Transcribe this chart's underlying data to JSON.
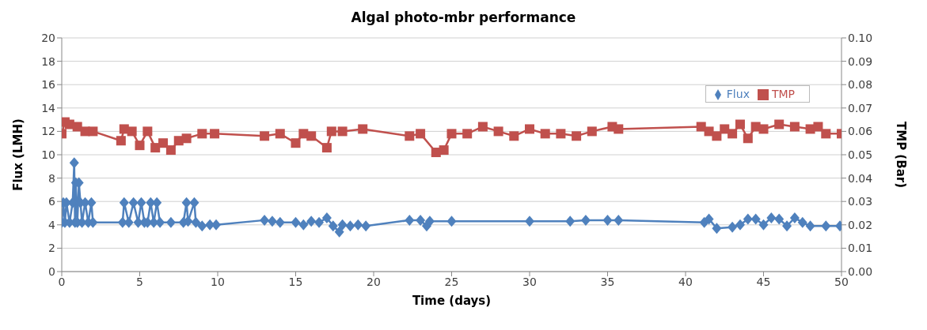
{
  "chart_data": {
    "type": "line",
    "title": "Algal photo-mbr performance",
    "xlabel": "Time (days)",
    "ylabel": "Flux (LMH)",
    "y2label": "TMP (Bar)",
    "xlim": [
      0,
      50
    ],
    "xticks": [
      0,
      5,
      10,
      15,
      20,
      25,
      30,
      35,
      40,
      45,
      50
    ],
    "ylim": [
      0,
      20
    ],
    "yticks": [
      0,
      2,
      4,
      6,
      8,
      10,
      12,
      14,
      16,
      18,
      20
    ],
    "y2lim": [
      0,
      0.1
    ],
    "y2ticks": [
      {
        "value": 0,
        "label": "0.00"
      },
      {
        "value": 0.01,
        "label": "0.01"
      },
      {
        "value": 0.02,
        "label": "0.02"
      },
      {
        "value": 0.03,
        "label": "0.03"
      },
      {
        "value": 0.04,
        "label": "0.04"
      },
      {
        "value": 0.05,
        "label": "0.05"
      },
      {
        "value": 0.06,
        "label": "0.06"
      },
      {
        "value": 0.07,
        "label": "0.07"
      },
      {
        "value": 0.08,
        "label": "0.08"
      },
      {
        "value": 0.09,
        "label": "0.09"
      },
      {
        "value": 0.1,
        "label": "0.10"
      }
    ],
    "grid": "y",
    "legend": "top right",
    "line_style": "solid",
    "series": [
      {
        "name": "Flux",
        "color": "#4f81bd",
        "marker": "diamond",
        "x": [
          0,
          0.1,
          0.2,
          0.3,
          0.5,
          0.7,
          0.8,
          0.85,
          0.9,
          1.0,
          1.1,
          1.2,
          1.3,
          1.5,
          1.7,
          1.9,
          2.0,
          3.9,
          4.0,
          4.3,
          4.6,
          4.9,
          5.1,
          5.3,
          5.5,
          5.7,
          5.9,
          6.1,
          6.3,
          7,
          7.8,
          8.0,
          8.1,
          8.5,
          8.6,
          9,
          9.5,
          9.9,
          13,
          13.5,
          14,
          15,
          15.5,
          16,
          16.5,
          17,
          17.4,
          17.8,
          18,
          18.5,
          19,
          19.5,
          22.3,
          23,
          23.4,
          23.6,
          25,
          30,
          32.6,
          33.6,
          35,
          35.7,
          41.2,
          41.5,
          42,
          43,
          43.5,
          44,
          44.5,
          45,
          45.5,
          46,
          46.5,
          47,
          47.5,
          48,
          49,
          49.9
        ],
        "values": [
          4.2,
          5.9,
          4.2,
          5.9,
          4.2,
          5.9,
          9.3,
          4.2,
          7.6,
          4.2,
          7.6,
          5.9,
          4.2,
          5.9,
          4.2,
          5.9,
          4.2,
          4.2,
          5.9,
          4.2,
          5.9,
          4.2,
          5.9,
          4.2,
          4.2,
          5.9,
          4.2,
          5.9,
          4.2,
          4.2,
          4.2,
          5.9,
          4.3,
          5.9,
          4.2,
          3.9,
          4.0,
          4.0,
          4.4,
          4.3,
          4.2,
          4.2,
          4.0,
          4.3,
          4.2,
          4.6,
          3.9,
          3.4,
          4.0,
          3.9,
          4.0,
          3.9,
          4.4,
          4.4,
          3.9,
          4.3,
          4.3,
          4.3,
          4.3,
          4.4,
          4.4,
          4.4,
          4.2,
          4.5,
          3.7,
          3.8,
          4.0,
          4.5,
          4.5,
          4.0,
          4.6,
          4.5,
          3.9,
          4.6,
          4.2,
          3.9,
          3.9,
          3.9
        ]
      },
      {
        "name": "TMP",
        "color": "#c0504d",
        "marker": "square",
        "axis": "y2",
        "x": [
          0,
          0.2,
          0.5,
          1,
          1.5,
          2,
          3.8,
          4,
          4.5,
          5,
          5.5,
          6,
          6.5,
          7,
          7.5,
          8,
          9,
          9.8,
          13,
          14,
          15,
          15.5,
          16,
          17,
          17.3,
          18,
          19.3,
          22.3,
          23,
          24,
          24.5,
          25,
          26,
          27,
          28,
          29,
          30,
          31,
          32,
          33,
          34,
          35.3,
          35.7,
          41,
          41.5,
          42,
          42.5,
          43,
          43.5,
          44,
          44.5,
          45,
          46,
          47,
          48,
          48.5,
          49,
          50
        ],
        "values": [
          0.059,
          0.064,
          0.063,
          0.062,
          0.06,
          0.06,
          0.056,
          0.061,
          0.06,
          0.054,
          0.06,
          0.053,
          0.055,
          0.052,
          0.056,
          0.057,
          0.059,
          0.059,
          0.058,
          0.059,
          0.055,
          0.059,
          0.058,
          0.053,
          0.06,
          0.06,
          0.061,
          0.058,
          0.059,
          0.051,
          0.052,
          0.059,
          0.059,
          0.062,
          0.06,
          0.058,
          0.061,
          0.059,
          0.059,
          0.058,
          0.06,
          0.062,
          0.061,
          0.062,
          0.06,
          0.058,
          0.061,
          0.059,
          0.063,
          0.057,
          0.062,
          0.061,
          0.063,
          0.062,
          0.061,
          0.062,
          0.059,
          0.059
        ]
      }
    ]
  }
}
